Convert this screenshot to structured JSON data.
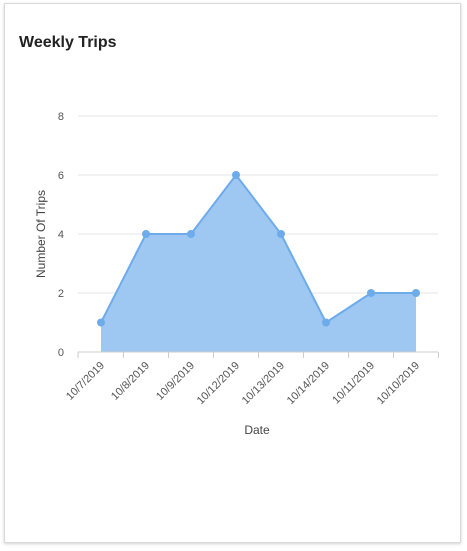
{
  "card": {
    "title": "Weekly Trips"
  },
  "colors": {
    "area_fill": "#9ec8f2",
    "line": "#6eabeb",
    "point": "#6eabeb",
    "grid": "#e6e6e6",
    "axis": "#cccccc"
  },
  "chart_data": {
    "type": "area",
    "title": "",
    "xlabel": "Date",
    "ylabel": "Number Of Trips",
    "categories": [
      "10/7/2019",
      "10/8/2019",
      "10/9/2019",
      "10/12/2019",
      "10/13/2019",
      "10/14/2019",
      "10/11/2019",
      "10/10/2019"
    ],
    "series": [
      {
        "values": [
          1,
          4,
          4,
          6,
          4,
          1,
          2,
          2
        ]
      }
    ],
    "ylim": [
      0,
      8
    ],
    "yticks": [
      0,
      2,
      4,
      6,
      8
    ],
    "grid": true,
    "legend": "none"
  }
}
